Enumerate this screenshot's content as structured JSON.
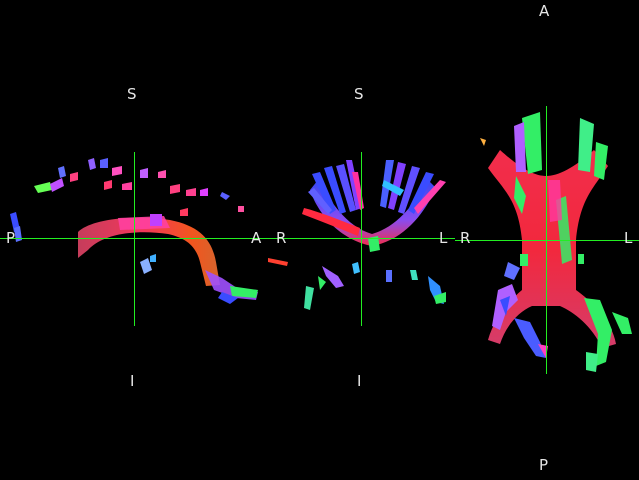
{
  "orientation_labels": {
    "sagittal": {
      "top": "S",
      "bottom": "I",
      "left": "P",
      "right": "A"
    },
    "coronal": {
      "top": "S",
      "bottom": "I",
      "left": "R",
      "right": "L"
    },
    "axial": {
      "top": "A",
      "bottom": "P",
      "left": "R",
      "right": "L"
    }
  },
  "colors": {
    "background": "#000000",
    "crosshair": "#22ee22",
    "label": "#e6e6e6",
    "fiber_left_right": "#ff2a40",
    "fiber_anterior_posterior": "#33ff55",
    "fiber_superior_inferior": "#3a4cff",
    "fiber_mixed": "#b050ff"
  }
}
